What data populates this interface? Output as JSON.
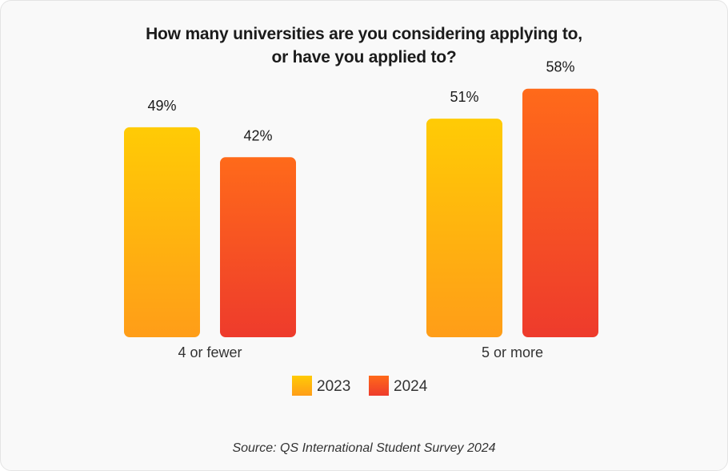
{
  "chart_data": {
    "type": "bar",
    "title_lines": [
      "How many universities are you considering applying to,",
      "or have you applied to?"
    ],
    "categories": [
      "4 or fewer",
      "5 or more"
    ],
    "series": [
      {
        "name": "2023",
        "values": [
          49,
          51
        ],
        "labels": [
          "49%",
          "51%"
        ],
        "color_top": "#ffcb05",
        "color_bottom": "#ff9d18"
      },
      {
        "name": "2024",
        "values": [
          42,
          58
        ],
        "labels": [
          "42%",
          "58%"
        ],
        "color_top": "#ff6a1a",
        "color_bottom": "#ee3b2c"
      }
    ],
    "unit": "%",
    "ylim": [
      0,
      60
    ],
    "legend_position": "bottom",
    "source": "Source: QS International Student Survey 2024"
  }
}
